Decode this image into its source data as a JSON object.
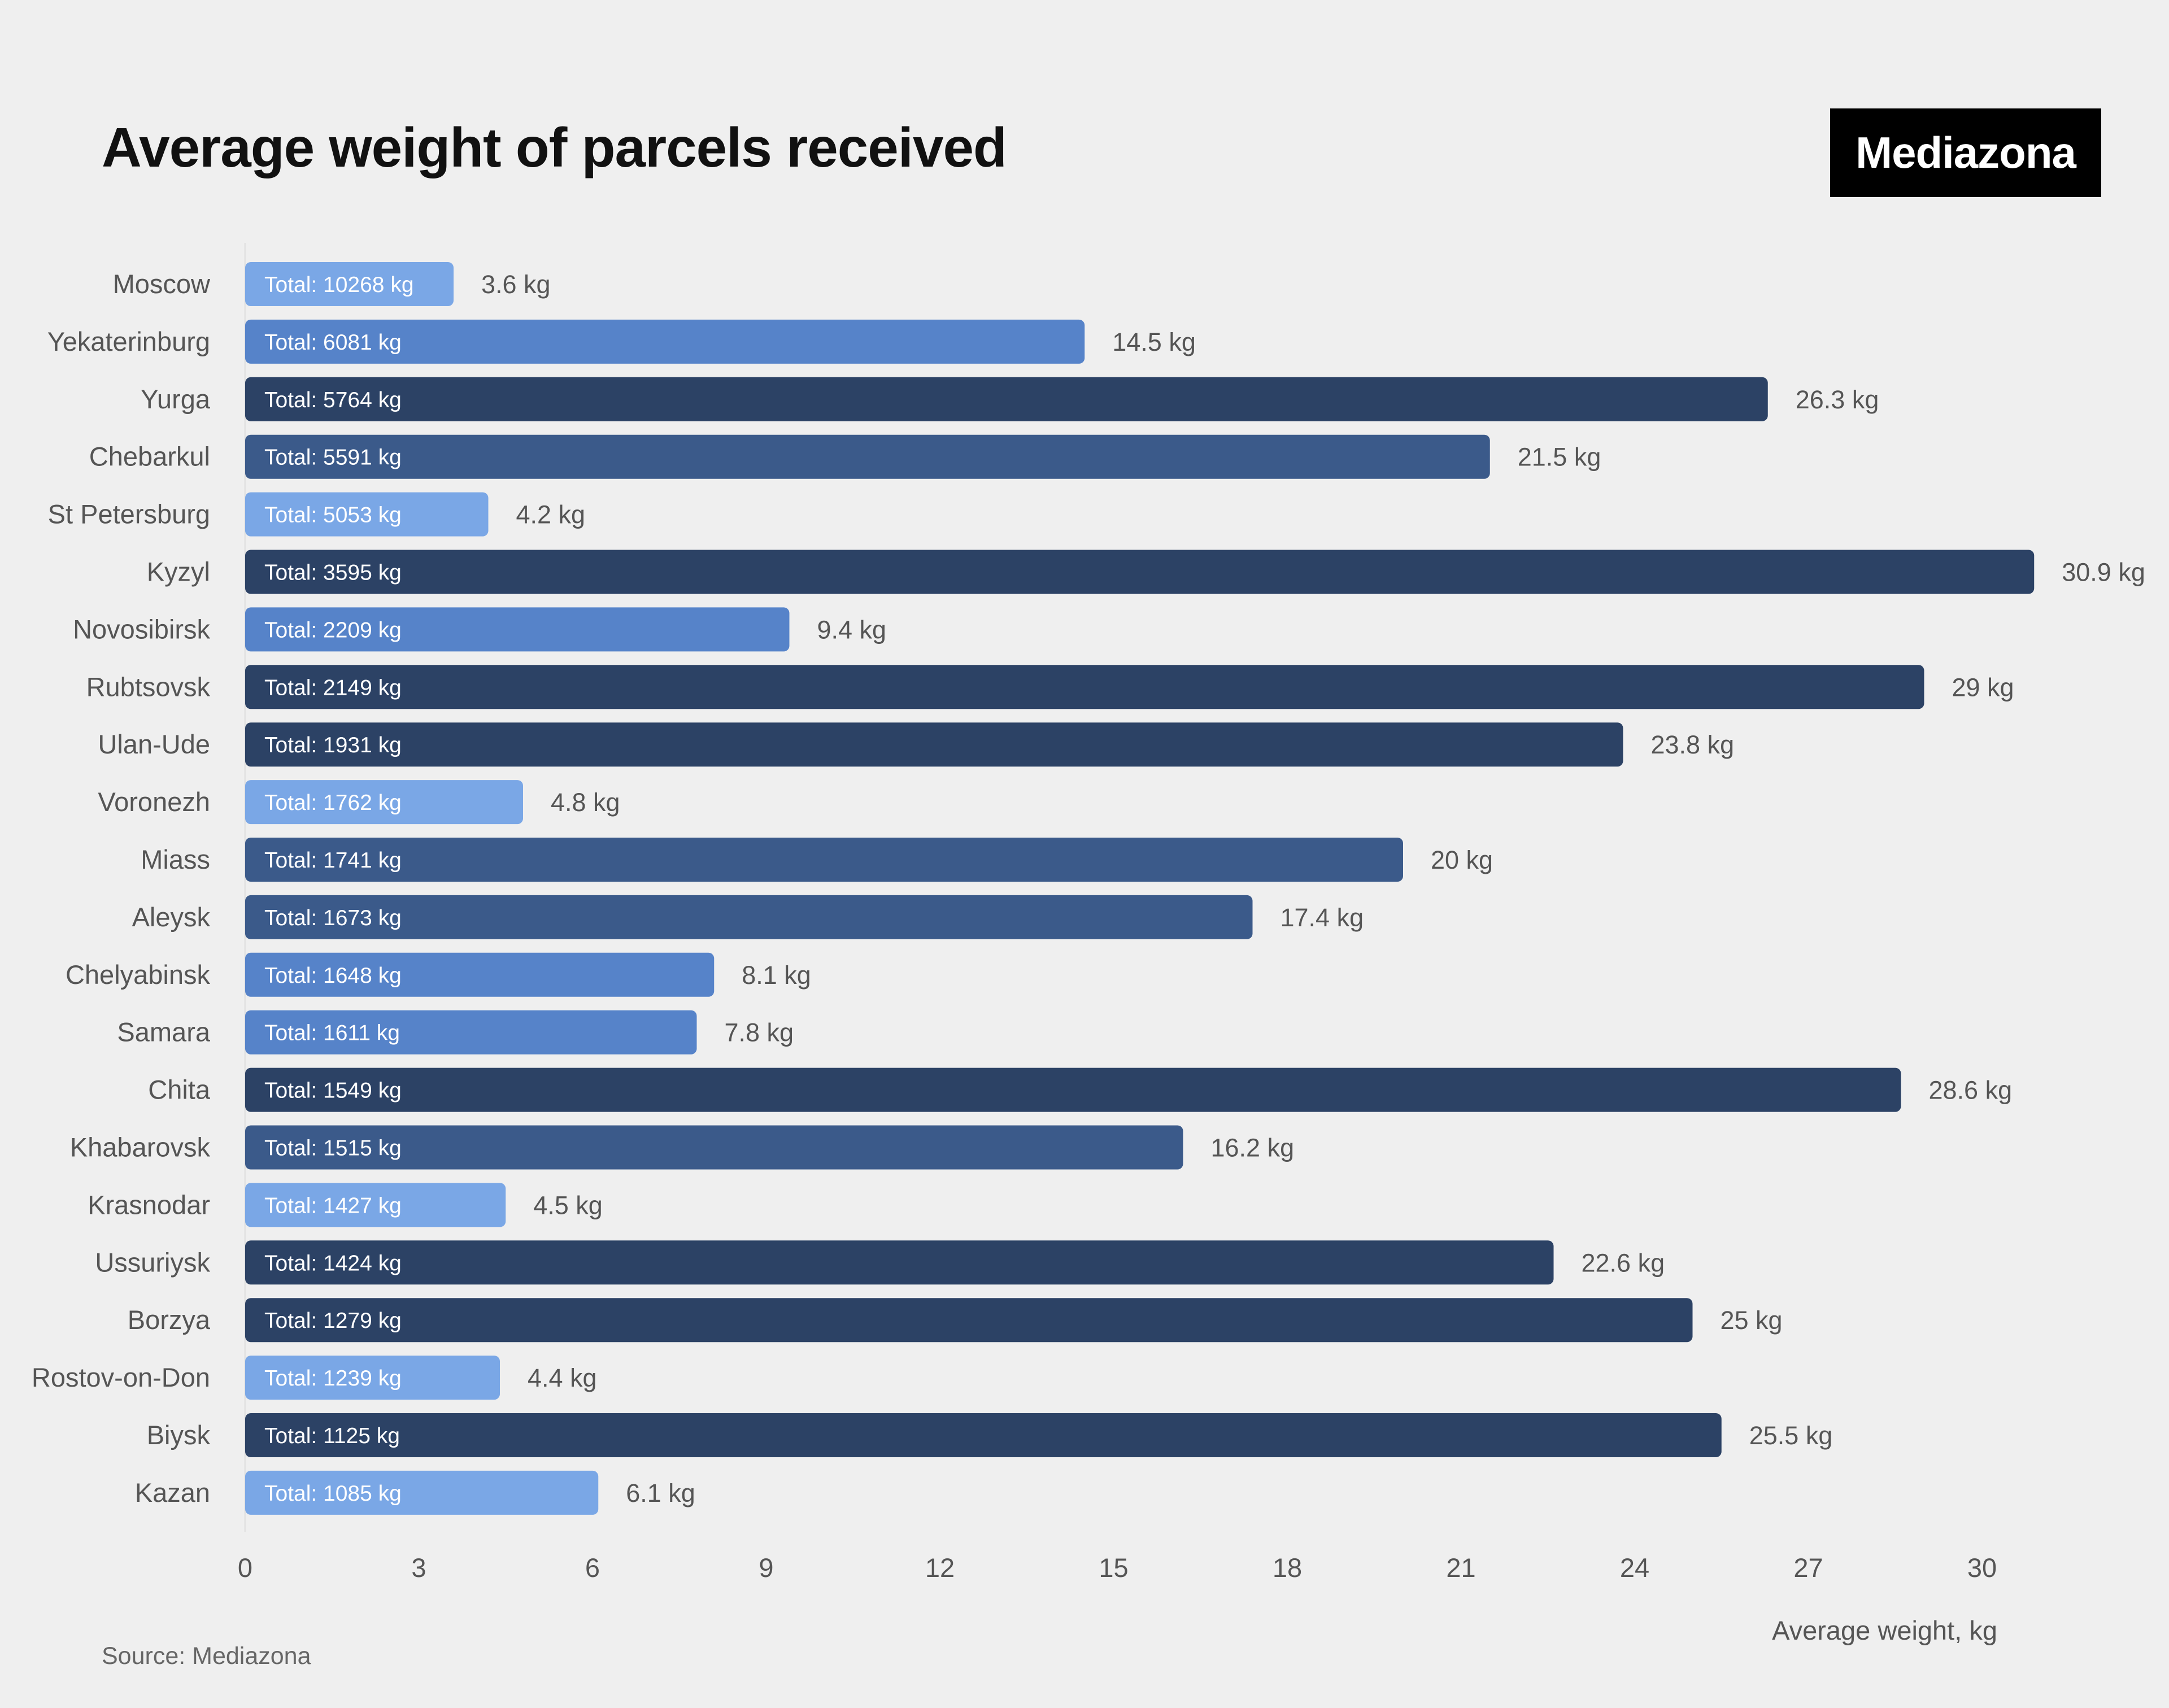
{
  "title": "Average weight of parcels received",
  "logo": "Mediazona",
  "source": "Source: Mediazona",
  "colors": {
    "background": "#efefef",
    "level1": "#7aa7e6",
    "level2": "#5683c9",
    "level3": "#3b5a8a",
    "level4": "#2c4265",
    "text": "#555555"
  },
  "chart_data": {
    "type": "bar",
    "orientation": "horizontal",
    "xlabel": "Average weight, kg",
    "xlim": [
      0,
      31
    ],
    "xticks": [
      0,
      3,
      6,
      9,
      12,
      15,
      18,
      21,
      24,
      27,
      30
    ],
    "unit": "kg",
    "bar_label_prefix": "Total:",
    "categories": [
      "Moscow",
      "Yekaterinburg",
      "Yurga",
      "Chebarkul",
      "St Petersburg",
      "Kyzyl",
      "Novosibirsk",
      "Rubtsovsk",
      "Ulan-Ude",
      "Voronezh",
      "Miass",
      "Aleysk",
      "Chelyabinsk",
      "Samara",
      "Chita",
      "Khabarovsk",
      "Krasnodar",
      "Ussuriysk",
      "Borzya",
      "Rostov-on-Don",
      "Biysk",
      "Kazan"
    ],
    "values": [
      3.6,
      14.5,
      26.3,
      21.5,
      4.2,
      30.9,
      9.4,
      29,
      23.8,
      4.8,
      20,
      17.4,
      8.1,
      7.8,
      28.6,
      16.2,
      4.5,
      22.6,
      25,
      4.4,
      25.5,
      6.1
    ],
    "value_labels": [
      "3.6 kg",
      "14.5 kg",
      "26.3 kg",
      "21.5 kg",
      "4.2 kg",
      "30.9 kg",
      "9.4 kg",
      "29 kg",
      "23.8 kg",
      "4.8 kg",
      "20 kg",
      "17.4 kg",
      "8.1 kg",
      "7.8 kg",
      "28.6 kg",
      "16.2 kg",
      "4.5 kg",
      "22.6 kg",
      "25 kg",
      "4.4 kg",
      "25.5 kg",
      "6.1 kg"
    ],
    "totals": [
      10268,
      6081,
      5764,
      5591,
      5053,
      3595,
      2209,
      2149,
      1931,
      1762,
      1741,
      1673,
      1648,
      1611,
      1549,
      1515,
      1427,
      1424,
      1279,
      1239,
      1125,
      1085
    ],
    "total_labels": [
      "Total: 10268 kg",
      "Total: 6081 kg",
      "Total: 5764 kg",
      "Total: 5591 kg",
      "Total: 5053 kg",
      "Total: 3595 kg",
      "Total: 2209 kg",
      "Total: 2149 kg",
      "Total: 1931 kg",
      "Total: 1762 kg",
      "Total: 1741 kg",
      "Total: 1673 kg",
      "Total: 1648 kg",
      "Total: 1611 kg",
      "Total: 1549 kg",
      "Total: 1515 kg",
      "Total: 1427 kg",
      "Total: 1424 kg",
      "Total: 1279 kg",
      "Total: 1239 kg",
      "Total: 1125 kg",
      "Total: 1085 kg"
    ],
    "color_thresholds": [
      7,
      15,
      22.5
    ]
  }
}
